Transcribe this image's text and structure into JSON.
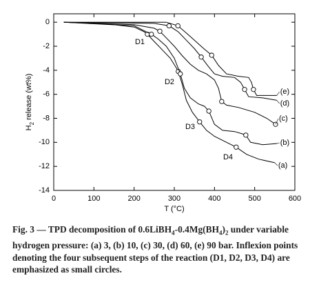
{
  "chart_data": {
    "type": "line",
    "xlabel": "T (°C)",
    "ylabel_parts": [
      "H",
      "2",
      " release (wt%)"
    ],
    "xlim": [
      0,
      600
    ],
    "xticks": [
      0,
      100,
      200,
      300,
      400,
      500,
      600
    ],
    "ylim": [
      -14,
      0.7
    ],
    "yticks": [
      0,
      -2,
      -4,
      -6,
      -8,
      -10,
      -12,
      -14
    ],
    "color": "#000000",
    "series": [
      {
        "name": "(a)",
        "x": [
          25,
          100,
          150,
          200,
          225,
          233,
          250,
          270,
          290,
          305,
          310,
          320,
          330,
          345,
          363,
          380,
          400,
          430,
          454,
          480,
          510,
          550
        ],
        "values": [
          0,
          -0.1,
          -0.2,
          -0.4,
          -0.8,
          -1.0,
          -1.6,
          -2.3,
          -3.0,
          -3.8,
          -4.1,
          -5.2,
          -6.5,
          -7.5,
          -8.3,
          -9.0,
          -9.5,
          -10.0,
          -10.4,
          -11.0,
          -11.4,
          -11.7
        ],
        "inflection_x": [
          233,
          310,
          363,
          454
        ],
        "inflection_y": [
          -1.0,
          -4.1,
          -8.3,
          -10.4
        ]
      },
      {
        "name": "(b)",
        "x": [
          25,
          200,
          230,
          243,
          260,
          280,
          300,
          315,
          325,
          340,
          360,
          375,
          386,
          400,
          420,
          450,
          470,
          478,
          490,
          520,
          555
        ],
        "values": [
          0,
          -0.3,
          -0.8,
          -1.0,
          -1.4,
          -2.0,
          -3.0,
          -4.3,
          -5.5,
          -6.3,
          -6.8,
          -7.0,
          -7.4,
          -8.5,
          -9.0,
          -9.1,
          -9.3,
          -9.4,
          -10.0,
          -10.2,
          -10.1
        ],
        "inflection_x": [
          243,
          315,
          386,
          478
        ],
        "inflection_y": [
          -1.0,
          -4.3,
          -7.4,
          -9.4
        ]
      },
      {
        "name": "(c)",
        "x": [
          25,
          200,
          250,
          264,
          280,
          300,
          320,
          340,
          360,
          380,
          400,
          410,
          418,
          430,
          460,
          500,
          530,
          552
        ],
        "values": [
          0,
          -0.2,
          -0.5,
          -0.75,
          -1.3,
          -2.0,
          -2.8,
          -3.5,
          -4.0,
          -4.3,
          -4.8,
          -5.5,
          -6.6,
          -6.9,
          -7.1,
          -7.5,
          -8.0,
          -8.5
        ],
        "inflection_x": [
          264,
          418,
          552
        ],
        "inflection_y": [
          -0.75,
          -6.6,
          -8.5
        ]
      },
      {
        "name": "(d)",
        "x": [
          25,
          250,
          287,
          310,
          330,
          350,
          367,
          385,
          400,
          420,
          450,
          465,
          475,
          485,
          520,
          555
        ],
        "values": [
          0,
          -0.1,
          -0.3,
          -0.8,
          -1.5,
          -2.2,
          -2.9,
          -3.7,
          -4.3,
          -4.5,
          -4.6,
          -5.0,
          -5.6,
          -6.2,
          -6.3,
          -6.5
        ],
        "inflection_x": [
          287,
          367,
          475
        ],
        "inflection_y": [
          -0.3,
          -2.9,
          -5.6
        ]
      },
      {
        "name": "(e)",
        "x": [
          25,
          280,
          309,
          330,
          350,
          370,
          393,
          410,
          430,
          460,
          485,
          492,
          497,
          505,
          555
        ],
        "values": [
          0,
          0,
          -0.3,
          -0.9,
          -1.5,
          -2.1,
          -2.75,
          -3.6,
          -4.3,
          -4.5,
          -4.6,
          -5.0,
          -5.6,
          -6.1,
          -6.1
        ],
        "inflection_x": [
          309,
          393,
          497
        ],
        "inflection_y": [
          -0.3,
          -2.75,
          -5.6
        ]
      }
    ],
    "annotations": [
      "D1",
      "D2",
      "D3",
      "D4"
    ],
    "caption_parts": [
      "Fig. 3 — TPD decomposition of 0.6LiBH",
      "4",
      "-0.4Mg(BH",
      "4",
      ")",
      "2",
      " under variable hydrogen pressure: (a) 3, (b) 10, (c) 30, (d) 60, (e) 90 bar. Inflexion points denoting the four subsequent steps of the reaction (D1, D2, D3, D4) are emphasized as small circles."
    ]
  }
}
